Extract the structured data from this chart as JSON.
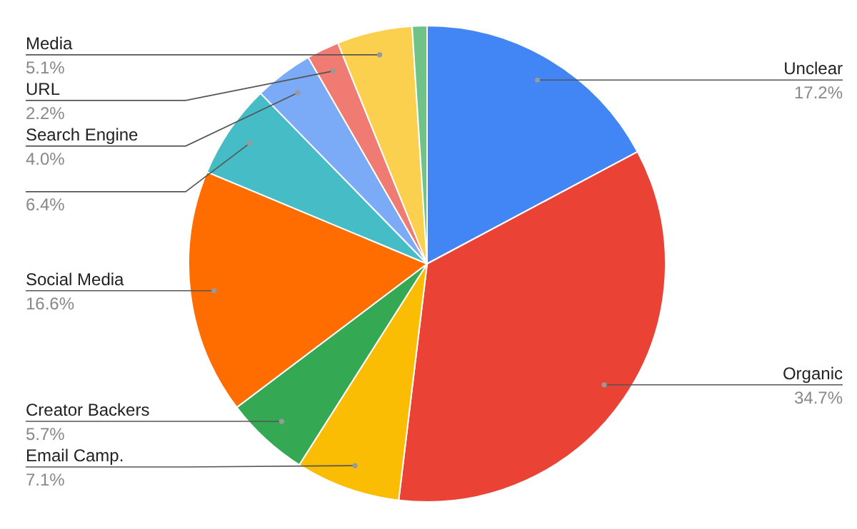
{
  "chart_data": {
    "type": "pie",
    "categories": [
      "Unclear",
      "Organic",
      "Email Camp.",
      "Creator Backers",
      "Social Media",
      null,
      "Search Engine",
      "URL",
      "Media",
      null
    ],
    "values": [
      17.2,
      34.7,
      7.1,
      5.7,
      16.6,
      6.4,
      4.0,
      2.2,
      5.1,
      1.0
    ],
    "value_labels": [
      "17.2%",
      "34.7%",
      "7.1%",
      "5.7%",
      "16.6%",
      "6.4%",
      "4.0%",
      "2.2%",
      "5.1%",
      null
    ],
    "colors": [
      "#4285f4",
      "#ea4335",
      "#fbbc04",
      "#34a853",
      "#ff6d01",
      "#46bdc6",
      "#7baaf7",
      "#f07b72",
      "#fcd04f",
      "#71c287"
    ]
  }
}
